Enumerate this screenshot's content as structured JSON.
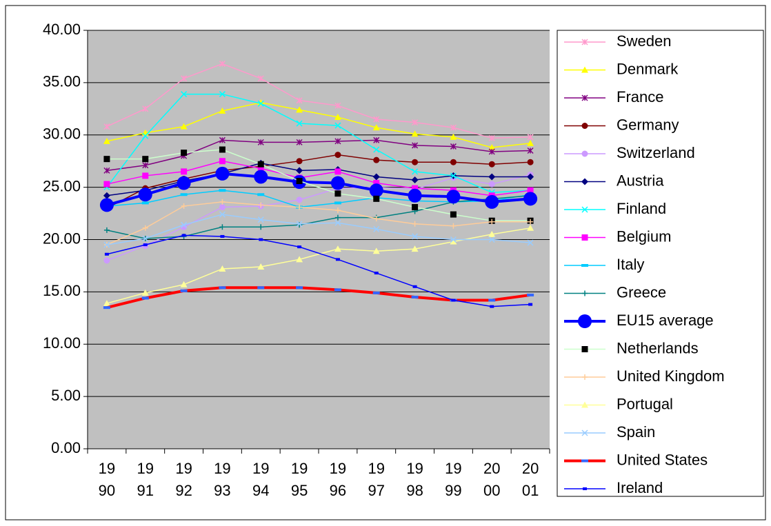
{
  "chart_data": {
    "type": "line",
    "categories": [
      "1990",
      "1991",
      "1992",
      "1993",
      "1994",
      "1995",
      "1996",
      "1997",
      "1998",
      "1999",
      "2000",
      "2001"
    ],
    "ylim": [
      0,
      40
    ],
    "yticks": [
      {
        "value": 0,
        "label": "0.00"
      },
      {
        "value": 5,
        "label": "5.00"
      },
      {
        "value": 10,
        "label": "10.00"
      },
      {
        "value": 15,
        "label": "15.00"
      },
      {
        "value": 20,
        "label": "20.00"
      },
      {
        "value": 25,
        "label": "25.00"
      },
      {
        "value": 30,
        "label": "30.00"
      },
      {
        "value": 35,
        "label": "35.00"
      },
      {
        "value": 40,
        "label": "40.00"
      }
    ],
    "grid": true,
    "legend": "right",
    "series": [
      {
        "name": "Sweden",
        "color": "#ff99cc",
        "marker": "asterisk",
        "values": [
          30.8,
          32.5,
          35.4,
          36.8,
          35.4,
          33.3,
          32.8,
          31.5,
          31.2,
          30.7,
          29.7,
          29.8
        ]
      },
      {
        "name": "Denmark",
        "color": "#ffff00",
        "marker": "triangle",
        "values": [
          29.4,
          30.2,
          30.8,
          32.3,
          33.1,
          32.4,
          31.7,
          30.7,
          30.1,
          29.8,
          28.8,
          29.2
        ]
      },
      {
        "name": "France",
        "color": "#800080",
        "marker": "asterisk",
        "values": [
          26.6,
          27.1,
          28.0,
          29.5,
          29.3,
          29.3,
          29.4,
          29.5,
          29.0,
          28.9,
          28.4,
          28.5
        ]
      },
      {
        "name": "Germany",
        "color": "#800000",
        "marker": "circle",
        "values": [
          23.0,
          24.9,
          25.8,
          26.6,
          27.0,
          27.5,
          28.1,
          27.6,
          27.4,
          27.4,
          27.2,
          27.4
        ]
      },
      {
        "name": "Switzerland",
        "color": "#cc99ff",
        "marker": "circle",
        "values": [
          18.0,
          19.4,
          21.2,
          23.1,
          23.2,
          23.8,
          24.9,
          25.0,
          24.8,
          25.9,
          25.3,
          26.2
        ]
      },
      {
        "name": "Austria",
        "color": "#000080",
        "marker": "diamond",
        "values": [
          24.2,
          24.7,
          25.6,
          26.3,
          27.3,
          26.6,
          26.7,
          26.0,
          25.7,
          26.1,
          26.0,
          26.0
        ]
      },
      {
        "name": "Finland",
        "color": "#00ffff",
        "marker": "x",
        "values": [
          25.0,
          29.9,
          33.9,
          33.9,
          33.0,
          31.1,
          30.9,
          28.6,
          26.5,
          26.1,
          24.5,
          24.7
        ]
      },
      {
        "name": "Belgium",
        "color": "#ff00ff",
        "marker": "square",
        "values": [
          25.3,
          26.1,
          26.5,
          27.5,
          26.8,
          25.9,
          26.5,
          25.4,
          24.9,
          24.7,
          24.2,
          24.7
        ]
      },
      {
        "name": "Italy",
        "color": "#00ccff",
        "marker": "dash",
        "values": [
          23.2,
          23.5,
          24.3,
          24.7,
          24.3,
          23.1,
          23.5,
          24.0,
          23.7,
          23.6,
          23.7,
          24.3
        ]
      },
      {
        "name": "Greece",
        "color": "#008080",
        "marker": "plus",
        "values": [
          20.9,
          20.1,
          20.3,
          21.2,
          21.2,
          21.4,
          22.1,
          22.1,
          22.7,
          23.6,
          23.9,
          24.2
        ]
      },
      {
        "name": "EU15 average",
        "color": "#0000ff",
        "marker": "bigcircle",
        "line_width": 4,
        "values": [
          23.3,
          24.3,
          25.4,
          26.3,
          26.0,
          25.5,
          25.4,
          24.7,
          24.2,
          24.1,
          23.6,
          23.9
        ]
      },
      {
        "name": "Netherlands",
        "color": "#ccffcc",
        "marker_color": "#000000",
        "marker": "square",
        "values": [
          27.7,
          27.7,
          28.3,
          28.6,
          27.2,
          25.6,
          24.4,
          23.9,
          23.1,
          22.4,
          21.8,
          21.8
        ]
      },
      {
        "name": "United Kingdom",
        "color": "#ffcc99",
        "marker": "plus",
        "values": [
          19.5,
          21.1,
          23.2,
          23.6,
          23.3,
          23.1,
          22.8,
          22.0,
          21.5,
          21.3,
          21.7,
          21.7
        ]
      },
      {
        "name": "Portugal",
        "color": "#ffff99",
        "marker": "triangle",
        "values": [
          13.9,
          14.9,
          15.7,
          17.2,
          17.4,
          18.1,
          19.1,
          18.9,
          19.1,
          19.8,
          20.5,
          21.1
        ]
      },
      {
        "name": "Spain",
        "color": "#99ccff",
        "marker": "x",
        "values": [
          19.5,
          20.1,
          21.4,
          22.4,
          21.9,
          21.5,
          21.6,
          21.0,
          20.3,
          20.0,
          20.0,
          19.7
        ]
      },
      {
        "name": "United States",
        "color": "#ff0000",
        "marker_color": "#3366ff",
        "marker": "dash",
        "line_width": 4,
        "values": [
          13.5,
          14.4,
          15.1,
          15.4,
          15.4,
          15.4,
          15.2,
          14.9,
          14.5,
          14.2,
          14.2,
          14.7
        ]
      },
      {
        "name": "Ireland",
        "color": "#0000ff",
        "marker": "smallsquare",
        "values": [
          18.6,
          19.5,
          20.4,
          20.3,
          20.0,
          19.3,
          18.1,
          16.8,
          15.5,
          14.2,
          13.6,
          13.8
        ]
      }
    ]
  }
}
